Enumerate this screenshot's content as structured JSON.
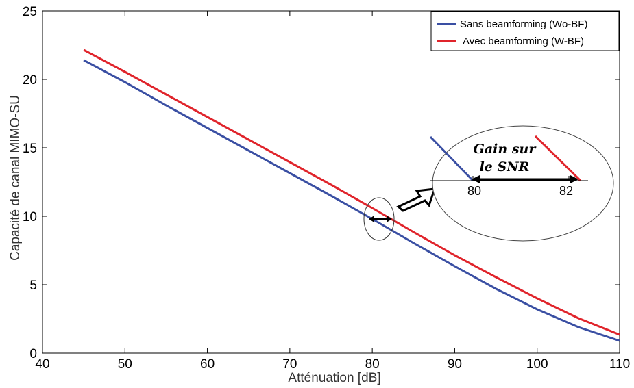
{
  "chart_data": {
    "type": "line",
    "xlabel": "Atténuation [dB]",
    "ylabel": "Capacité de canal MIMO-SU",
    "xlim": [
      40,
      110
    ],
    "ylim": [
      0,
      25
    ],
    "xticks": [
      "40",
      "50",
      "60",
      "70",
      "80",
      "90",
      "100",
      "110"
    ],
    "yticks": [
      "0",
      "5",
      "10",
      "15",
      "20",
      "25"
    ],
    "grid": false,
    "legend_position": "top-right",
    "series": [
      {
        "name": "Sans beamforming (Wo-BF)",
        "color": "#3a4fa3",
        "x": [
          45,
          50,
          55,
          60,
          65,
          70,
          75,
          80,
          85,
          90,
          95,
          100,
          105,
          110
        ],
        "y": [
          21.4,
          19.8,
          18.1,
          16.45,
          14.8,
          13.15,
          11.5,
          9.8,
          8.05,
          6.35,
          4.7,
          3.2,
          1.9,
          0.9
        ]
      },
      {
        "name": "Avec beamforming (W-BF)",
        "color": "#e0242b",
        "x": [
          45,
          50,
          55,
          60,
          65,
          70,
          75,
          80,
          85,
          90,
          95,
          100,
          105,
          110
        ],
        "y": [
          22.15,
          20.55,
          18.9,
          17.25,
          15.6,
          13.95,
          12.3,
          10.6,
          8.85,
          7.15,
          5.55,
          4.0,
          2.55,
          1.35
        ]
      }
    ],
    "annotation": {
      "text_line1": "Gain sur",
      "text_line2": "le SNR",
      "tick_left": "80",
      "tick_right": "82"
    }
  }
}
